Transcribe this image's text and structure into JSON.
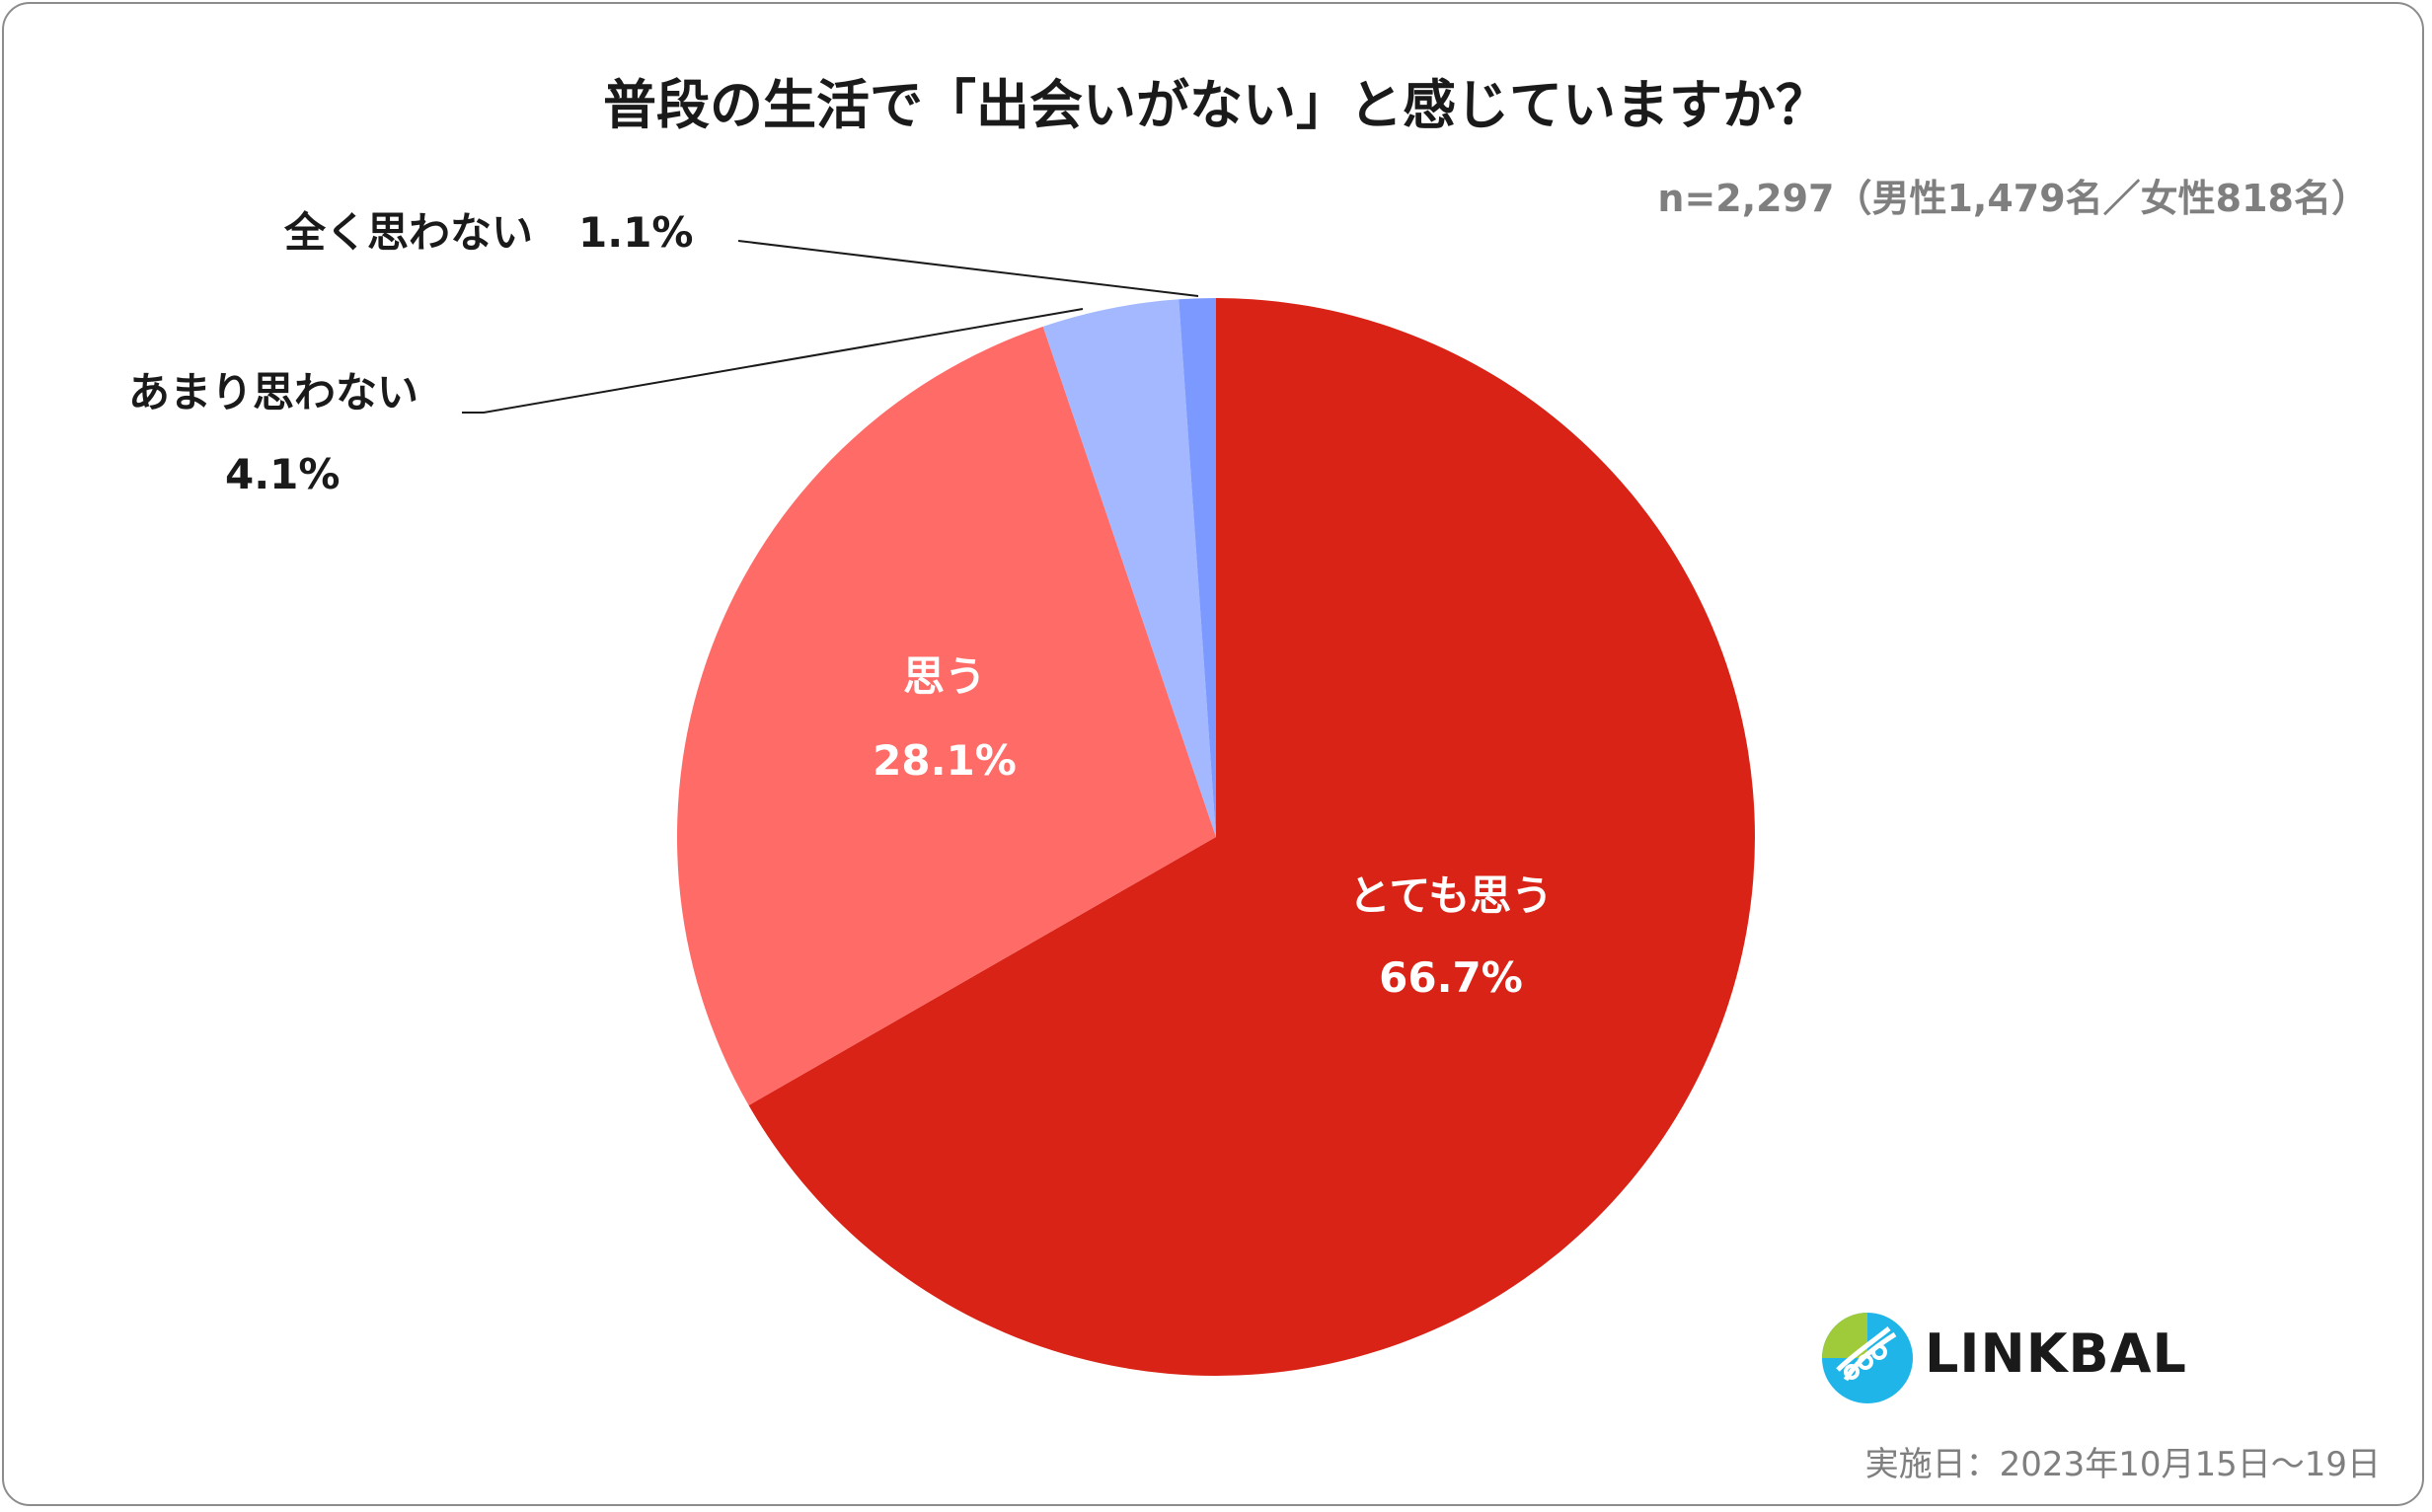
{
  "title": "普段の生活で「出会いがない」と感じていますか？",
  "sample_note": "n=2,297（男性1,479名／女性818名）",
  "survey_date": "実施日：2023年10月15日～19日",
  "logo_text": "LINKBAL",
  "colors": {
    "very_much": "#d92316",
    "somewhat": "#ff6b67",
    "not_much": "#a3b8ff",
    "not_at_all": "#7b99ff",
    "leader_line": "#1a1a1a"
  },
  "labels": {
    "very_much": {
      "name": "とても思う",
      "pct": "66.7%"
    },
    "somewhat": {
      "name": "思う",
      "pct": "28.1%"
    },
    "not_much": {
      "name": "あまり思わない",
      "pct": "4.1%"
    },
    "not_at_all": {
      "name": "全く思わない",
      "pct": "1.1%"
    }
  },
  "chart_data": {
    "type": "pie",
    "title": "普段の生活で「出会いがない」と感じていますか？",
    "start_angle": "12 o'clock",
    "direction": "clockwise",
    "slices": [
      {
        "label": "とても思う",
        "value": 66.7,
        "color": "#d92316"
      },
      {
        "label": "思う",
        "value": 28.1,
        "color": "#ff6b67"
      },
      {
        "label": "あまり思わない",
        "value": 4.1,
        "color": "#a3b8ff"
      },
      {
        "label": "全く思わない",
        "value": 1.1,
        "color": "#7b99ff"
      }
    ]
  }
}
